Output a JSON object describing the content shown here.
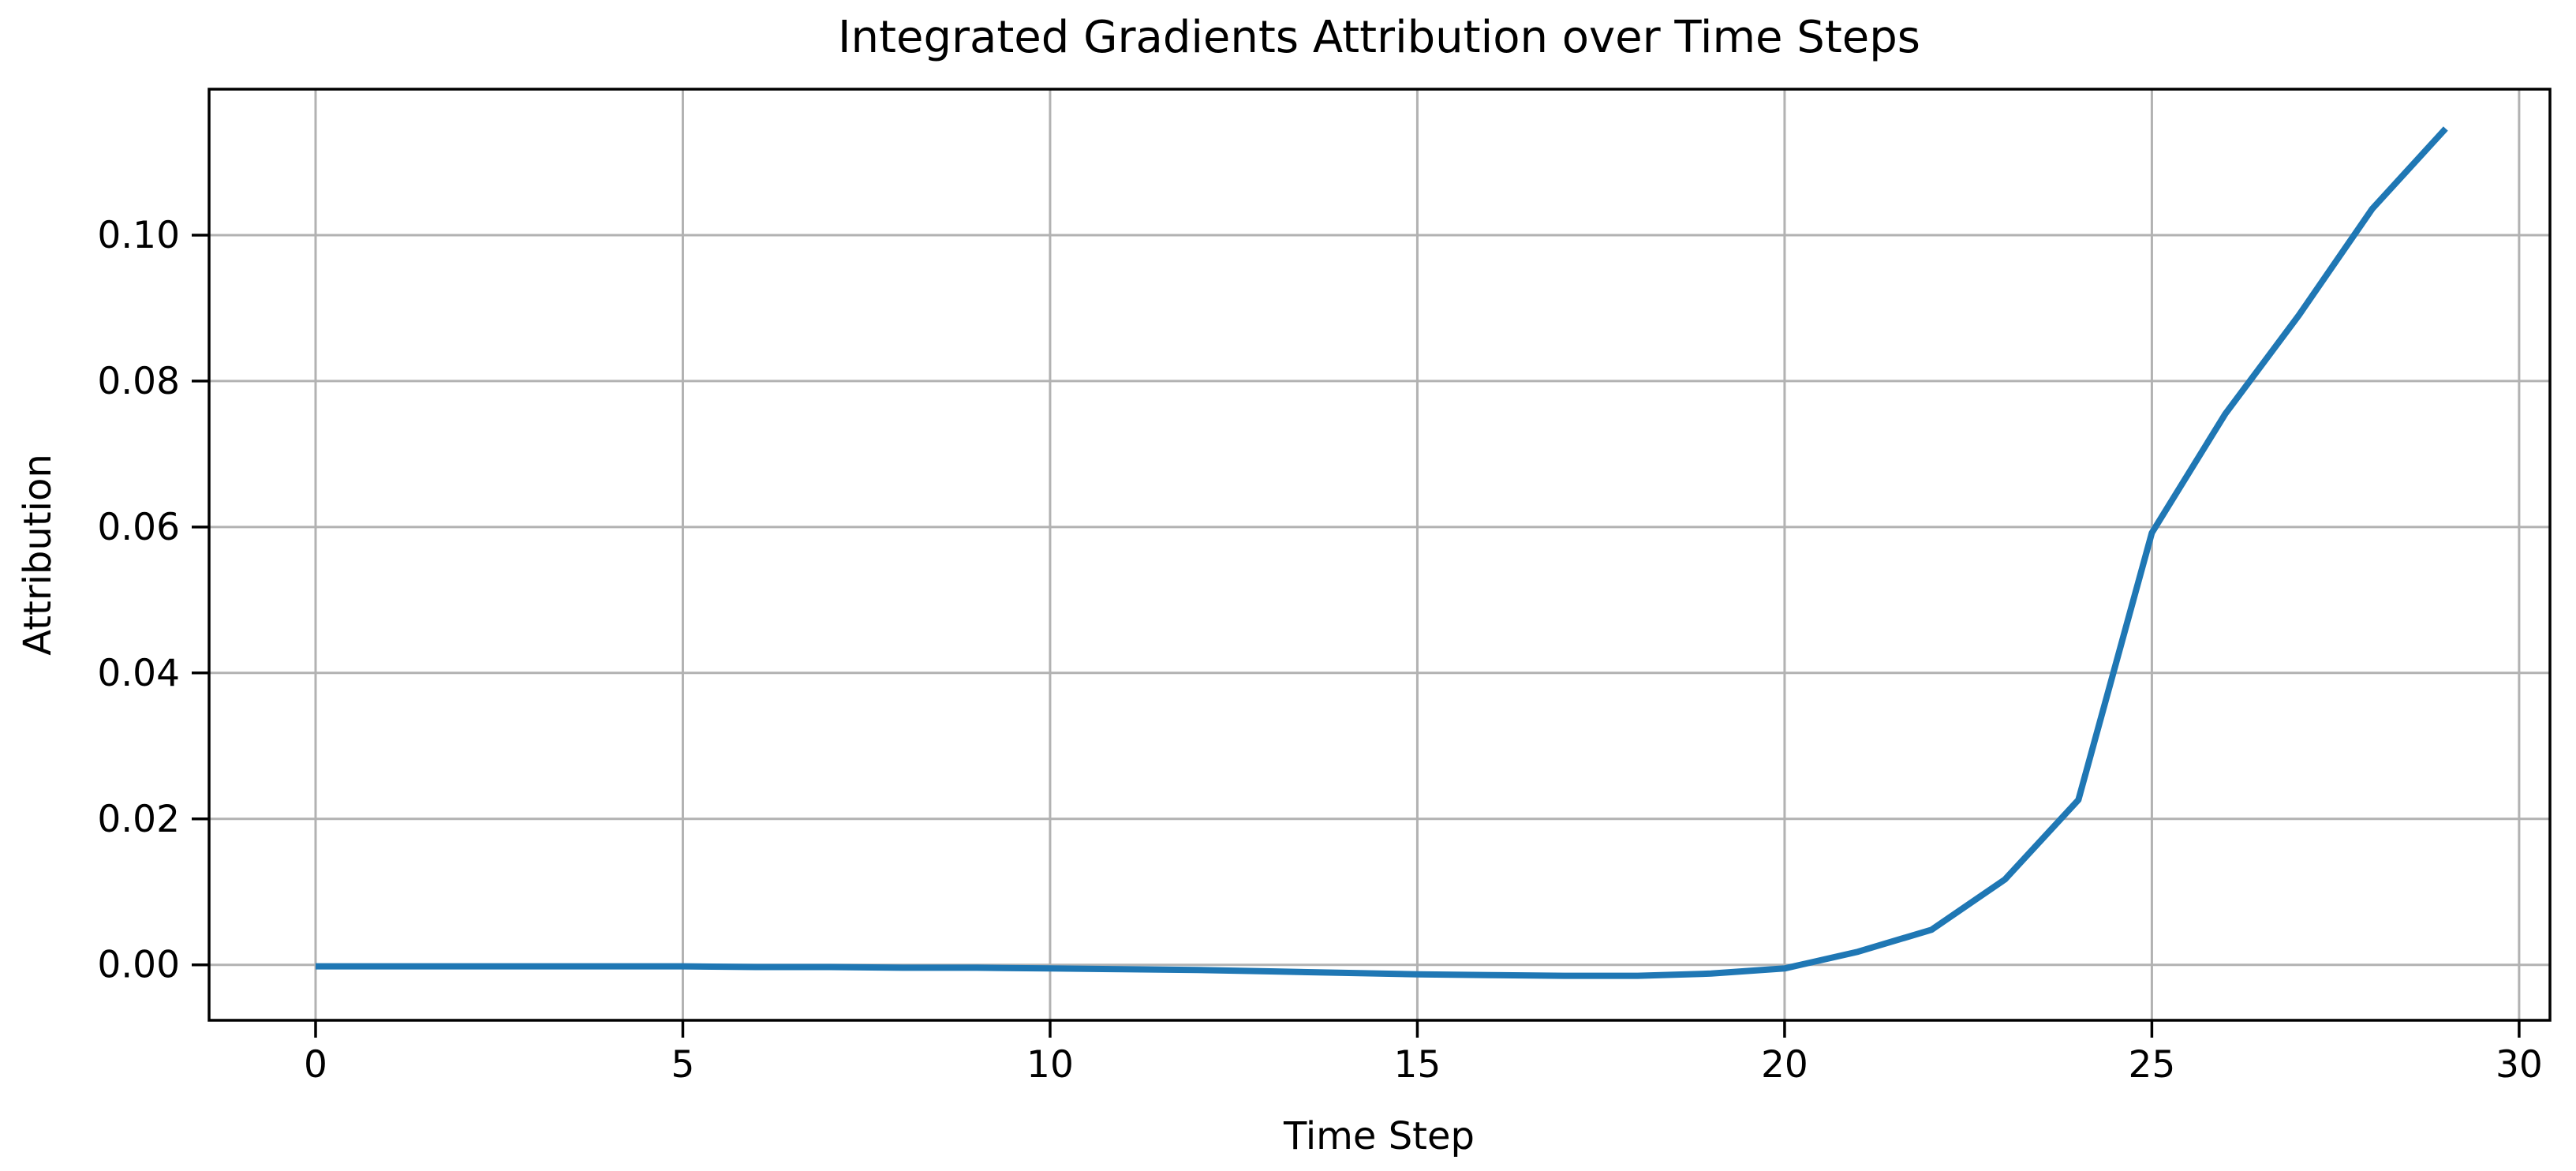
{
  "chart_data": {
    "type": "line",
    "title": "Integrated Gradients Attribution over Time Steps",
    "xlabel": "Time Step",
    "ylabel": "Attribution",
    "series": [
      {
        "name": "attribution",
        "x": [
          0,
          1,
          2,
          3,
          4,
          5,
          6,
          7,
          8,
          9,
          10,
          11,
          12,
          13,
          14,
          15,
          16,
          17,
          18,
          19,
          20,
          21,
          22,
          23,
          24,
          25,
          26,
          27,
          28,
          29
        ],
        "y": [
          -0.0002,
          -0.0002,
          -0.0002,
          -0.0002,
          -0.0002,
          -0.0002,
          -0.0003,
          -0.0003,
          -0.0004,
          -0.0004,
          -0.0005,
          -0.0006,
          -0.0007,
          -0.0009,
          -0.0011,
          -0.0013,
          -0.0014,
          -0.0015,
          -0.0015,
          -0.0012,
          -0.0005,
          0.0018,
          0.0048,
          0.0117,
          0.0226,
          0.0592,
          0.0755,
          0.089,
          0.1036,
          0.1146
        ]
      }
    ],
    "xlim": [
      -1.45,
      30.42
    ],
    "ylim": [
      -0.0076,
      0.12
    ],
    "xticks": {
      "values": [
        0,
        5,
        10,
        15,
        20,
        25,
        30
      ],
      "labels": [
        "0",
        "5",
        "10",
        "15",
        "20",
        "25",
        "30"
      ]
    },
    "yticks": {
      "values": [
        0.0,
        0.02,
        0.04,
        0.06,
        0.08,
        0.1
      ],
      "labels": [
        "0.00",
        "0.02",
        "0.04",
        "0.06",
        "0.08",
        "0.10"
      ]
    },
    "grid": true,
    "legend": null,
    "colors": {
      "line": "#1f77b4",
      "grid": "#b2b2b2",
      "spine": "#000000",
      "tick": "#000000",
      "text": "#000000",
      "background": "#ffffff"
    }
  }
}
